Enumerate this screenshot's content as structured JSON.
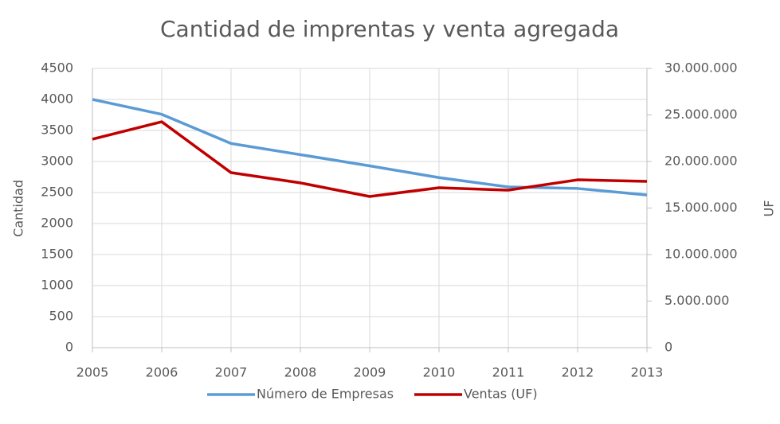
{
  "chart_data": {
    "type": "line",
    "title": "Cantidad de imprentas y venta agregada",
    "y_label": "Cantidad",
    "y2_label": "UF",
    "categories": [
      "2005",
      "2006",
      "2007",
      "2008",
      "2009",
      "2010",
      "2011",
      "2012",
      "2013"
    ],
    "series": [
      {
        "name": "Número de Empresas",
        "color": "#5b9bd5",
        "values": [
          4000,
          3760,
          3290,
          3110,
          2930,
          2740,
          2590,
          2565,
          2460
        ]
      },
      {
        "name": "Ventas (UF)",
        "color": "#c00000",
        "axis": "y2",
        "values": [
          22400000,
          24270000,
          18800000,
          17700000,
          16240000,
          17180000,
          16920000,
          18030000,
          17860000
        ]
      }
    ],
    "ylim": [
      0,
      4500
    ],
    "yticks": [
      0,
      500,
      1000,
      1500,
      2000,
      2500,
      3000,
      3500,
      4000,
      4500
    ],
    "y2lim": [
      0,
      30000000
    ],
    "y2ticks": [
      0,
      {
        "value": 5000000,
        "label": "5.000.000"
      },
      {
        "value": 10000000,
        "label": "10.000.000"
      },
      {
        "value": 15000000,
        "label": "15.000.000"
      },
      {
        "value": 20000000,
        "label": "20.000.000"
      },
      {
        "value": 25000000,
        "label": "25.000.000"
      },
      {
        "value": 30000000,
        "label": "30.000.000"
      }
    ],
    "grid": true,
    "legend": "bottom"
  }
}
